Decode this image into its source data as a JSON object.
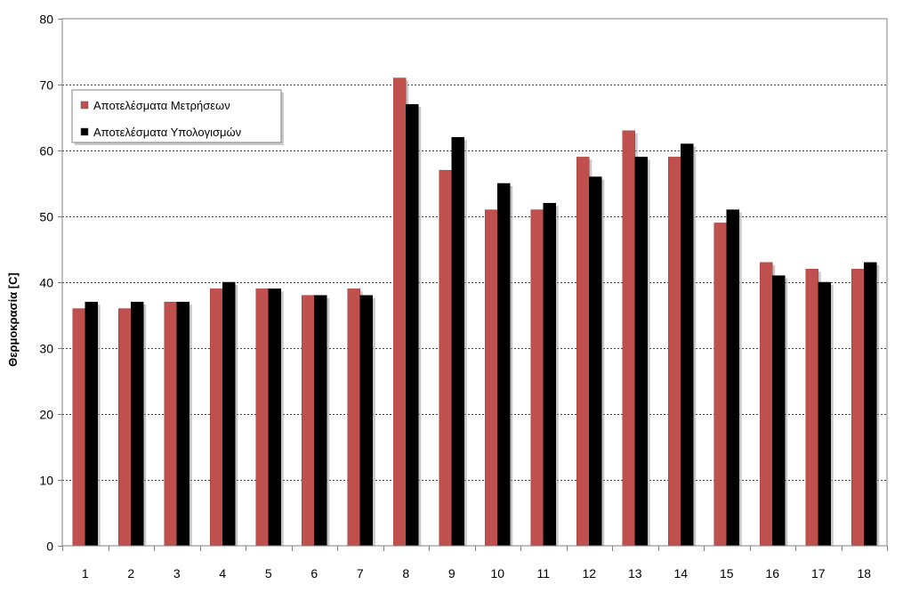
{
  "chart_data": {
    "type": "bar",
    "title": "",
    "xlabel": "",
    "ylabel": "Θερμοκρασία [C]",
    "ylim": [
      0,
      80
    ],
    "yticks": [
      0,
      10,
      20,
      30,
      40,
      50,
      60,
      70,
      80
    ],
    "grid": true,
    "grid_style": "dashed horizontal",
    "legend_position": "top-left",
    "categories": [
      "1",
      "2",
      "3",
      "4",
      "5",
      "6",
      "7",
      "8",
      "9",
      "10",
      "11",
      "12",
      "13",
      "14",
      "15",
      "16",
      "17",
      "18"
    ],
    "series": [
      {
        "name": "Αποτελέσματα Μετρήσεων",
        "color": "#c0504d",
        "values": [
          36,
          36,
          37,
          39,
          39,
          38,
          39,
          71,
          57,
          51,
          51,
          59,
          63,
          59,
          49,
          43,
          42,
          42
        ]
      },
      {
        "name": "Αποτελέσματα Υπολογισμών",
        "color": "#000000",
        "values": [
          37,
          37,
          37,
          40,
          39,
          38,
          38,
          67,
          62,
          55,
          52,
          56,
          59,
          61,
          51,
          41,
          40,
          43
        ]
      }
    ]
  }
}
